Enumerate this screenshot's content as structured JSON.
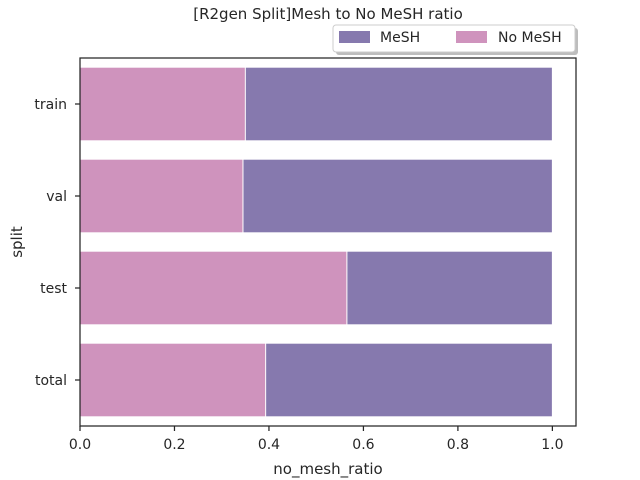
{
  "chart_data": {
    "type": "bar",
    "orientation": "horizontal",
    "stacked": "overlay",
    "title": "[R2gen Split]Mesh to No MeSH ratio",
    "xlabel": "no_mesh_ratio",
    "ylabel": "split",
    "categories": [
      "train",
      "val",
      "test",
      "total"
    ],
    "series": [
      {
        "name": "MeSH",
        "values": [
          1.0,
          1.0,
          1.0,
          1.0
        ],
        "color": "#8679ae"
      },
      {
        "name": "No MeSH",
        "values": [
          0.35,
          0.345,
          0.565,
          0.393
        ],
        "color": "#cf93bd"
      }
    ],
    "xlim": [
      0,
      1.05
    ],
    "xticks": [
      "0.0",
      "0.2",
      "0.4",
      "0.6",
      "0.8",
      "1.0"
    ],
    "grid": false,
    "legend_position": "top-right"
  }
}
